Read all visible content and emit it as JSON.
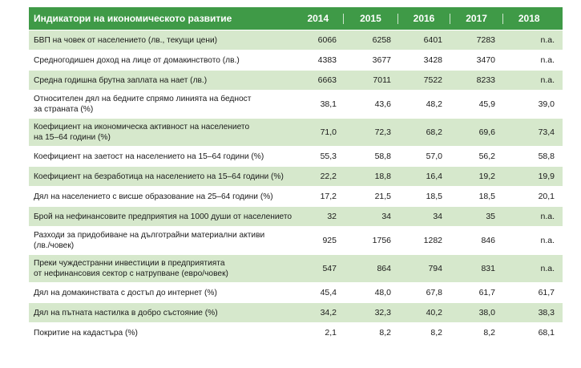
{
  "table": {
    "header": {
      "title": "Индикатори на икономическото развитие",
      "years": [
        "2014",
        "2015",
        "2016",
        "2017",
        "2018"
      ]
    },
    "rows": [
      {
        "label": "БВП на човек от населението (лв., текущи цени)",
        "values": [
          "6066",
          "6258",
          "6401",
          "7283",
          "n.a."
        ]
      },
      {
        "label": "Средногодишен доход на лице от домакинството (лв.)",
        "values": [
          "4383",
          "3677",
          "3428",
          "3470",
          "n.a."
        ]
      },
      {
        "label": "Средна годишна брутна заплата на нает (лв.)",
        "values": [
          "6663",
          "7011",
          "7522",
          "8233",
          "n.a."
        ]
      },
      {
        "label": "Относителен дял на бедните спрямо линията на бедност\nза страната (%)",
        "values": [
          "38,1",
          "43,6",
          "48,2",
          "45,9",
          "39,0"
        ]
      },
      {
        "label": "Коефициент на икономическа активност на населението\nна 15–64 години (%)",
        "values": [
          "71,0",
          "72,3",
          "68,2",
          "69,6",
          "73,4"
        ]
      },
      {
        "label": "Коефициент на заетост на населението на 15–64 години (%)",
        "values": [
          "55,3",
          "58,8",
          "57,0",
          "56,2",
          "58,8"
        ]
      },
      {
        "label": "Коефициент на безработица на населението на 15–64 години (%)",
        "values": [
          "22,2",
          "18,8",
          "16,4",
          "19,2",
          "19,9"
        ]
      },
      {
        "label": "Дял на населението с висше образование на 25–64 години (%)",
        "values": [
          "17,2",
          "21,5",
          "18,5",
          "18,5",
          "20,1"
        ]
      },
      {
        "label": "Брой на нефинансовите предприятия на 1000 души от населението",
        "values": [
          "32",
          "34",
          "34",
          "35",
          "n.a."
        ]
      },
      {
        "label": "Разходи за придобиване на дълготрайни материални активи\n(лв./човек)",
        "values": [
          "925",
          "1756",
          "1282",
          "846",
          "n.a."
        ]
      },
      {
        "label": "Преки чуждестранни инвестиции в предприятията\nот нефинансовия сектор с натрупване (евро/човек)",
        "values": [
          "547",
          "864",
          "794",
          "831",
          "n.a."
        ]
      },
      {
        "label": "Дял на домакинствата с достъп до интернет (%)",
        "values": [
          "45,4",
          "48,0",
          "67,8",
          "61,7",
          "61,7"
        ]
      },
      {
        "label": "Дял на пътната настилка в добро състояние (%)",
        "values": [
          "34,2",
          "32,3",
          "40,2",
          "38,0",
          "38,3"
        ]
      },
      {
        "label": "Покритие на кадастъра (%)",
        "values": [
          "2,1",
          "8,2",
          "8,2",
          "8,2",
          "68,1"
        ]
      }
    ],
    "colors": {
      "header_bg": "#3f9a47",
      "band_bg": "#d6e8cc",
      "plain_bg": "#ffffff"
    }
  }
}
